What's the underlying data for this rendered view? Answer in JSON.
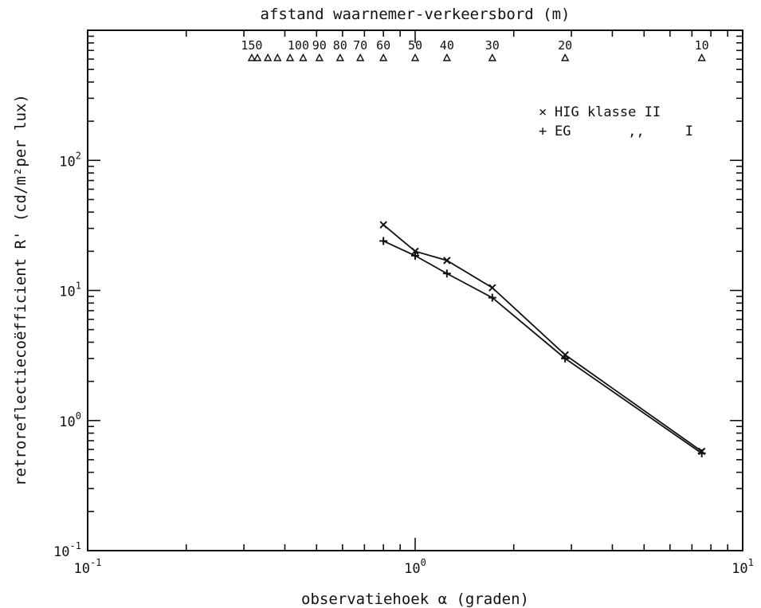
{
  "chart_data": {
    "type": "line",
    "xlabel": "observatiehoek α (graden)",
    "ylabel": "retroreflectiecoëfficient R' (cd/m²per lux)",
    "top_axis_label": "afstand waarnemer-verkeersbord (m)",
    "xscale": "log",
    "yscale": "log",
    "xlim": [
      0.1,
      10
    ],
    "ylim": [
      0.1,
      1000
    ],
    "x_tick_labels": [
      {
        "base": "10",
        "exp": "-1",
        "value": 0.1
      },
      {
        "base": "10",
        "exp": "0",
        "value": 1
      },
      {
        "base": "10",
        "exp": "1",
        "value": 10
      }
    ],
    "y_tick_labels": [
      {
        "base": "10",
        "exp": "-1",
        "value": 0.1
      },
      {
        "base": "10",
        "exp": "0",
        "value": 1
      },
      {
        "base": "10",
        "exp": "1",
        "value": 10
      },
      {
        "base": "10",
        "exp": "2",
        "value": 100
      }
    ],
    "top_distance_labels": [
      {
        "label": "150",
        "x": 0.317
      },
      {
        "label": "100",
        "x": 0.44
      },
      {
        "label": "90",
        "x": 0.51
      },
      {
        "label": "80",
        "x": 0.59
      },
      {
        "label": "70",
        "x": 0.68
      },
      {
        "label": "60",
        "x": 0.8
      },
      {
        "label": "50",
        "x": 1.0
      },
      {
        "label": "40",
        "x": 1.25
      },
      {
        "label": "30",
        "x": 1.72
      },
      {
        "label": "20",
        "x": 2.87
      },
      {
        "label": "10",
        "x": 7.5
      }
    ],
    "top_markers_x": [
      0.317,
      0.33,
      0.355,
      0.38,
      0.415,
      0.455,
      0.51,
      0.59,
      0.68,
      0.8,
      1.0,
      1.25,
      1.72,
      2.87,
      7.5
    ],
    "series": [
      {
        "name": "HIG klasse II",
        "marker": "x",
        "x": [
          0.8,
          1.0,
          1.25,
          1.72,
          2.87,
          7.5
        ],
        "values": [
          32,
          20,
          17,
          10.5,
          3.2,
          0.58
        ]
      },
      {
        "name": "EG",
        "marker": "+",
        "x": [
          0.8,
          1.0,
          1.25,
          1.72,
          2.87,
          7.5
        ],
        "values": [
          24,
          18.5,
          13.5,
          8.8,
          3.0,
          0.56
        ]
      }
    ],
    "legend": {
      "position": "top-right",
      "entries": [
        {
          "marker": "×",
          "text": "HIG klasse II"
        },
        {
          "marker": "+",
          "text": "EG       ,,     I"
        }
      ]
    },
    "grid": false
  }
}
